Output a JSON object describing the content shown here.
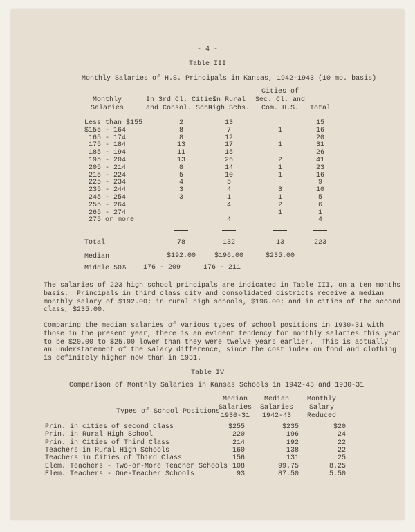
{
  "page_number": "- 4 -",
  "table3": {
    "label": "Table III",
    "title": "Monthly Salaries of H.S. Principals in Kansas, 1942-1943 (10 mo. basis)",
    "headers": {
      "salaries": [
        "Monthly",
        "Salaries"
      ],
      "col1": [
        "In 3rd Cl. Cities",
        "and Consol. Schs."
      ],
      "col2": [
        "In Rural",
        "High Schs."
      ],
      "col3": [
        "Cities of",
        "Sec. Cl. and",
        "Com. H.S."
      ],
      "total": [
        "Total"
      ]
    },
    "rows": [
      {
        "range": "Less than $155",
        "c1": "2",
        "c2": "13",
        "c3": "",
        "total": "15"
      },
      {
        "range": "$155 - 164",
        "c1": "8",
        "c2": "7",
        "c3": "1",
        "total": "16"
      },
      {
        "range": " 165 - 174",
        "c1": "8",
        "c2": "12",
        "c3": "",
        "total": "20"
      },
      {
        "range": " 175 - 184",
        "c1": "13",
        "c2": "17",
        "c3": "1",
        "total": "31"
      },
      {
        "range": " 185 - 194",
        "c1": "11",
        "c2": "15",
        "c3": "",
        "total": "26"
      },
      {
        "range": " 195 - 204",
        "c1": "13",
        "c2": "26",
        "c3": "2",
        "total": "41"
      },
      {
        "range": " 205 - 214",
        "c1": "8",
        "c2": "14",
        "c3": "1",
        "total": "23"
      },
      {
        "range": " 215 - 224",
        "c1": "5",
        "c2": "10",
        "c3": "1",
        "total": "16"
      },
      {
        "range": " 225 - 234",
        "c1": "4",
        "c2": "5",
        "c3": "",
        "total": "9"
      },
      {
        "range": " 235 - 244",
        "c1": "3",
        "c2": "4",
        "c3": "3",
        "total": "10"
      },
      {
        "range": " 245 - 254",
        "c1": "3",
        "c2": "1",
        "c3": "1",
        "total": "5"
      },
      {
        "range": " 255 - 264",
        "c1": "",
        "c2": "4",
        "c3": "2",
        "total": "6"
      },
      {
        "range": " 265 - 274",
        "c1": "",
        "c2": "",
        "c3": "1",
        "total": "1"
      },
      {
        "range": " 275 or more",
        "c1": "",
        "c2": "4",
        "c3": "",
        "total": "4"
      }
    ],
    "total": {
      "label": "Total",
      "c1": "78",
      "c2": "132",
      "c3": "13",
      "total": "223"
    },
    "median": {
      "label": "Median",
      "c1": "$192.00",
      "c2": "$196.00",
      "c3": "$235.00"
    },
    "middle": {
      "label": "Middle 50%",
      "c1": "176 - 209",
      "c2": "176 - 211"
    }
  },
  "paragraphs": [
    [
      "The salaries of 223 high school principals are indicated in Table III, on a ten months",
      "basis.  Principals in third class city and consolidated districts receive a median",
      "monthly salary of $192.00; in rural high schools, $196.00; and in cities of the second",
      "class, $235.00."
    ],
    [
      "Comparing the median salaries of various types of school positions in 1930-31 with",
      "those in the present year, there is an evident tendency for monthly salaries this year",
      "to be $20.00 to $25.00 lower than they were twelve years earlier.  This is actually",
      "an understatement of the salary difference, since the cost index on food and clothing",
      "is definitely higher now than in 1931."
    ]
  ],
  "table4": {
    "label": "Table IV",
    "title": "Comparison of Monthly Salaries in Kansas Schools in 1942-43 and 1930-31",
    "headers": {
      "type": "Types of School Positions",
      "col1": [
        "Median",
        "Salaries",
        "1930-31"
      ],
      "col2": [
        "Median",
        "Salaries",
        "1942-43"
      ],
      "col3": [
        "Monthly",
        "Salary",
        "Reduced"
      ]
    },
    "rows": [
      {
        "type": "Prin. in cities of second class",
        "c1": "$255",
        "c2": "$235",
        "c3": "$20"
      },
      {
        "type": "Prin. in Rural High School",
        "c1": "220",
        "c2": "196",
        "c3": "24"
      },
      {
        "type": "Prin. in Cities of Third Class",
        "c1": "214",
        "c2": "192",
        "c3": "22"
      },
      {
        "type": "Teachers in Rural High Schools",
        "c1": "160",
        "c2": "138",
        "c3": "22"
      },
      {
        "type": "Teachers in Cities of Third Class",
        "c1": "156",
        "c2": "131",
        "c3": "25"
      },
      {
        "type": "Elem. Teachers - Two-or-More Teacher Schools",
        "c1": "108",
        "c2": "99.75",
        "c3": "8.25"
      },
      {
        "type": "Elem. Teachers - One-Teacher Schools",
        "c1": "93",
        "c2": "87.50",
        "c3": "5.50"
      }
    ]
  }
}
